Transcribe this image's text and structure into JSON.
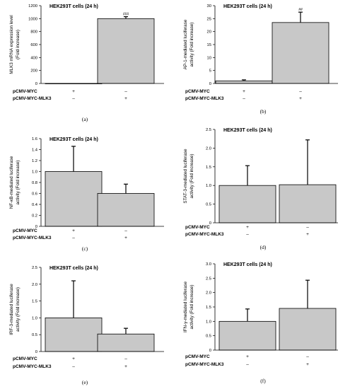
{
  "colors": {
    "bar_fill": "#c8c8c8",
    "axis": "#000000",
    "background": "#ffffff"
  },
  "chart_data": [
    {
      "type": "bar",
      "panel_label": "(a)",
      "title": "HEK293T cells (24 h)",
      "ylabel_lines": [
        "MLK3 mRNA expression level",
        "(Fold increase)"
      ],
      "ylim": [
        0,
        1200
      ],
      "yticks": [
        "0",
        "200",
        "400",
        "600",
        "800",
        "1000",
        "1200"
      ],
      "tick_values": [
        0,
        200,
        400,
        600,
        800,
        1000,
        1200
      ],
      "values": [
        1,
        1000
      ],
      "errors": [
        0,
        30
      ],
      "annotations": [
        "",
        "###"
      ],
      "rows": [
        {
          "label": "pCMV-MYC",
          "signs": [
            "+",
            "–"
          ]
        },
        {
          "label": "pCMV-MYC-MLK3",
          "signs": [
            "–",
            "+"
          ]
        }
      ]
    },
    {
      "type": "bar",
      "panel_label": "(b)",
      "title": "HEK293T cells (24 h)",
      "ylabel_lines": [
        "AP-1-mediated luciferase",
        "activity (Fold increase)"
      ],
      "ylim": [
        0,
        30
      ],
      "yticks": [
        "0",
        "5",
        "10",
        "15",
        "20",
        "25",
        "30"
      ],
      "tick_values": [
        0,
        5,
        10,
        15,
        20,
        25,
        30
      ],
      "values": [
        1,
        23.5
      ],
      "errors": [
        0.4,
        4
      ],
      "annotations": [
        "",
        "##"
      ],
      "rows": [
        {
          "label": "pCMV-MYC",
          "signs": [
            "+",
            "–"
          ]
        },
        {
          "label": "pCMV-MYC-MLK3",
          "signs": [
            "–",
            "+"
          ]
        }
      ]
    },
    {
      "type": "bar",
      "panel_label": "(c)",
      "title": "HEK293T cells (24 h)",
      "ylabel_lines": [
        "NF-κB-mediated luciferase",
        "activity (Fold increase)"
      ],
      "ylim": [
        0,
        1.6
      ],
      "yticks": [
        "0",
        "0.2",
        "0.4",
        "0.6",
        "0.8",
        "1.0",
        "1.2",
        "1.4",
        "1.6"
      ],
      "tick_values": [
        0,
        0.2,
        0.4,
        0.6,
        0.8,
        1.0,
        1.2,
        1.4,
        1.6
      ],
      "values": [
        1.0,
        0.6
      ],
      "errors": [
        0.46,
        0.17
      ],
      "annotations": [
        "",
        ""
      ],
      "rows": [
        {
          "label": "pCMV-MYC",
          "signs": [
            "+",
            "–"
          ]
        },
        {
          "label": "pCMV-MYC-MLK3",
          "signs": [
            "–",
            "+"
          ]
        }
      ]
    },
    {
      "type": "bar",
      "panel_label": "(d)",
      "title": "HEK293T cells (24 h)",
      "ylabel_lines": [
        "STAT-3-mediated luciferase",
        "activity (Fold increase)"
      ],
      "ylim": [
        0,
        2.5
      ],
      "yticks": [
        "0",
        "0.5",
        "1.0",
        "1.5",
        "2.0",
        "2.5"
      ],
      "tick_values": [
        0,
        0.5,
        1.0,
        1.5,
        2.0,
        2.5
      ],
      "values": [
        1.0,
        1.02
      ],
      "errors": [
        0.53,
        1.2
      ],
      "annotations": [
        "",
        ""
      ],
      "rows": [
        {
          "label": "pCMV-MYC",
          "signs": [
            "+",
            "–"
          ]
        },
        {
          "label": "pCMV-MYC-MLK3",
          "signs": [
            "–",
            "+"
          ]
        }
      ]
    },
    {
      "type": "bar",
      "panel_label": "(e)",
      "title": "HEK293T cells (24 h)",
      "ylabel_lines": [
        "IRF-3-mediated luciferase",
        "activity (Fold increase)"
      ],
      "ylim": [
        0,
        2.5
      ],
      "yticks": [
        "0",
        "0.5",
        "1.0",
        "1.5",
        "2.0",
        "2.5"
      ],
      "tick_values": [
        0,
        0.5,
        1.0,
        1.5,
        2.0,
        2.5
      ],
      "values": [
        1.0,
        0.52
      ],
      "errors": [
        1.1,
        0.17
      ],
      "annotations": [
        "",
        ""
      ],
      "rows": [
        {
          "label": "pCMV-MYC",
          "signs": [
            "+",
            "–"
          ]
        },
        {
          "label": "pCMV-MYC-MLK3",
          "signs": [
            "–",
            "+"
          ]
        }
      ]
    },
    {
      "type": "bar",
      "panel_label": "(f)",
      "title": "HEK293T cells (24 h)",
      "ylabel_lines": [
        "IFN-γ-mediated luciferase",
        "activity (Fold increase)"
      ],
      "ylim": [
        0,
        3.0
      ],
      "yticks": [
        "0",
        "0.5",
        "1.0",
        "1.5",
        "2.0",
        "2.5",
        "3.0"
      ],
      "tick_values": [
        0,
        0.5,
        1.0,
        1.5,
        2.0,
        2.5,
        3.0
      ],
      "values": [
        1.0,
        1.45
      ],
      "errors": [
        0.43,
        0.98
      ],
      "annotations": [
        "",
        ""
      ],
      "rows": [
        {
          "label": "pCMV-MYC",
          "signs": [
            "+",
            "–"
          ]
        },
        {
          "label": "pCMV-MYC-MLK3",
          "signs": [
            "–",
            "+"
          ]
        }
      ]
    }
  ]
}
